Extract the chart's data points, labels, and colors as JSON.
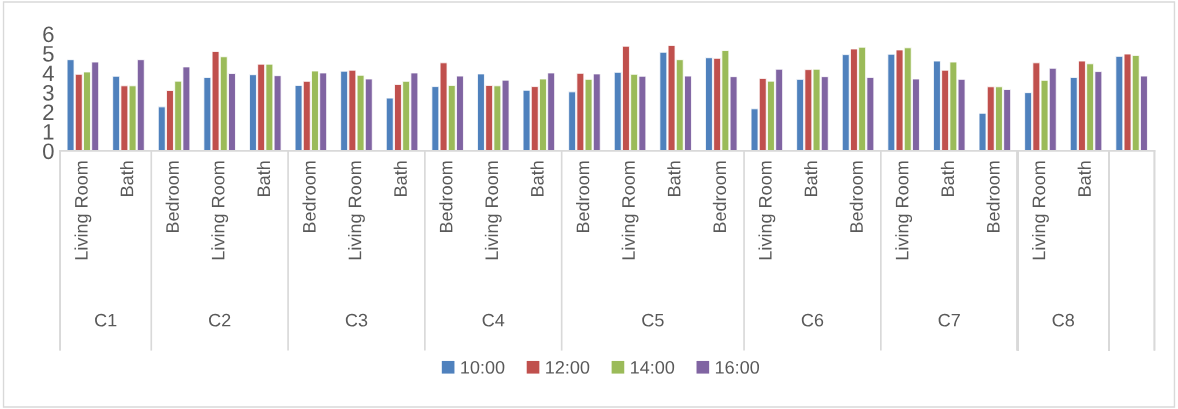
{
  "chart_data": {
    "type": "bar",
    "categories": [
      "Living Room",
      "Bath",
      "Bedroom",
      "Living Room",
      "Bath",
      "Bedroom",
      "Living Room",
      "Bath",
      "Bedroom",
      "Living Room",
      "Bath",
      "Bedroom",
      "Living Room",
      "Bath",
      "Bedroom",
      "Living Room",
      "Bath",
      "Bedroom",
      "Living Room",
      "Bath",
      "Bedroom",
      "Living Room",
      "Bath",
      null
    ],
    "annotations": [
      "C1",
      "C2",
      "C3",
      "C4",
      "C5",
      "C6",
      "C7",
      "C8"
    ],
    "series": [
      {
        "name": "10:00",
        "color": "#4f81bd",
        "values": [
          4.68,
          3.83,
          2.26,
          3.77,
          3.91,
          3.36,
          4.09,
          2.71,
          3.3,
          3.95,
          3.11,
          3.03,
          4.03,
          5.06,
          4.78,
          2.16,
          3.67,
          4.94,
          4.96,
          4.61,
          1.93,
          2.99,
          3.77,
          4.85
        ]
      },
      {
        "name": "12:00",
        "color": "#c0504d",
        "values": [
          3.93,
          3.34,
          3.1,
          5.1,
          4.45,
          3.57,
          4.14,
          3.41,
          4.52,
          3.36,
          3.3,
          3.98,
          5.37,
          5.41,
          4.75,
          3.72,
          4.17,
          5.23,
          5.18,
          4.14,
          3.29,
          4.52,
          4.61,
          4.97
        ]
      },
      {
        "name": "14:00",
        "color": "#9bbb59",
        "values": [
          4.05,
          3.34,
          3.58,
          4.83,
          4.45,
          4.1,
          3.88,
          3.57,
          3.36,
          3.34,
          3.69,
          3.67,
          3.93,
          4.68,
          5.15,
          3.58,
          4.19,
          5.32,
          5.29,
          4.56,
          3.29,
          3.62,
          4.47,
          4.9
        ]
      },
      {
        "name": "16:00",
        "color": "#8064a2",
        "values": [
          4.56,
          4.68,
          4.31,
          3.97,
          3.86,
          4.0,
          3.69,
          4.0,
          3.84,
          3.63,
          4.0,
          3.95,
          3.83,
          3.84,
          3.81,
          4.19,
          3.81,
          3.77,
          3.69,
          3.67,
          3.15,
          4.24,
          4.07,
          3.84
        ]
      }
    ],
    "ylim": [
      0,
      6
    ],
    "yticks": [
      0,
      1,
      2,
      3,
      4,
      5,
      6
    ],
    "legend": "bottom"
  }
}
